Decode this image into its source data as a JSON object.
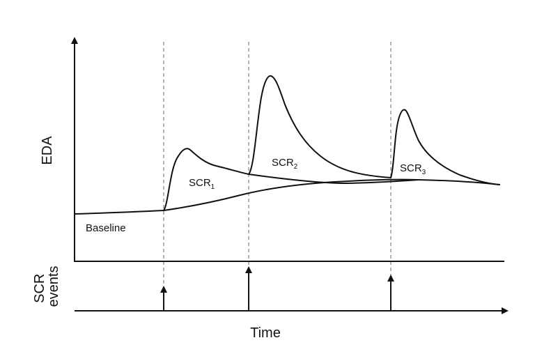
{
  "axes": {
    "y_label": "EDA",
    "x_label": "Time",
    "events_label_line1": "SCR",
    "events_label_line2": "events"
  },
  "labels": {
    "baseline": "Baseline",
    "scr1_main": "SCR",
    "scr1_sub": "1",
    "scr2_main": "SCR",
    "scr2_sub": "2",
    "scr3_main": "SCR",
    "scr3_sub": "3"
  },
  "events": [
    {
      "name": "scr-event-1",
      "relative_amplitude": 0.42
    },
    {
      "name": "scr-event-2",
      "relative_amplitude": 0.93
    },
    {
      "name": "scr-event-3",
      "relative_amplitude": 0.65
    }
  ]
}
